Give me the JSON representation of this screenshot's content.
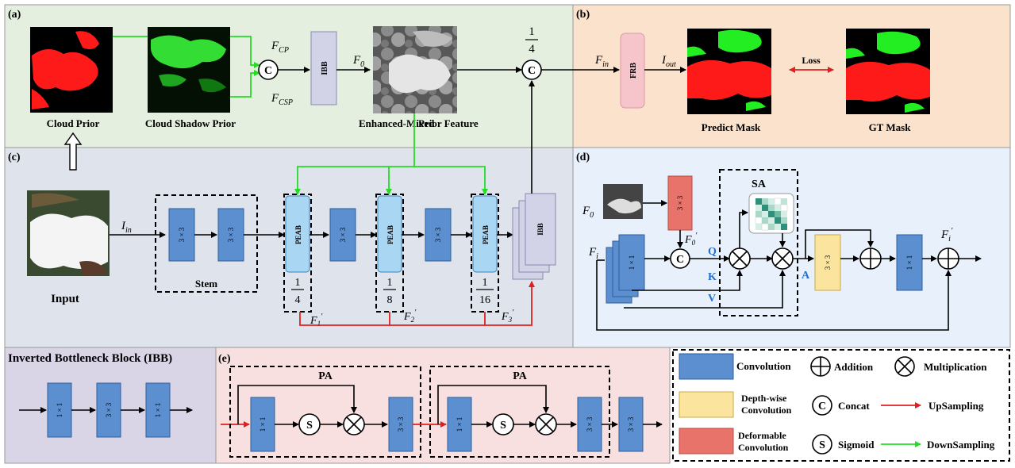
{
  "panels": {
    "a": "(a)",
    "b": "(b)",
    "c": "(c)",
    "d": "(d)",
    "e": "(e)",
    "ibb_title": "Inverted Bottleneck Block (IBB)"
  },
  "panel_a": {
    "cloud_prior": "Cloud Prior",
    "cloud_shadow_prior": "Cloud Shadow Prior",
    "enhanced_mixed": "Enhanced-Mixed",
    "prior_feature": "Prior Feature",
    "f_cp": "F",
    "f_cp_sub": "CP",
    "f_csp": "F",
    "f_csp_sub": "CSP",
    "f0": "F",
    "f0_sub": "0",
    "ibb": "IBB",
    "concat": "C",
    "quarter_num": "1",
    "quarter_den": "4"
  },
  "panel_b": {
    "fin": "F",
    "fin_sub": "in",
    "frb": "FRB",
    "iout": "I",
    "iout_sub": "out",
    "loss": "Loss",
    "predict_mask": "Predict Mask",
    "gt_mask": "GT Mask"
  },
  "panel_c": {
    "input": "Input",
    "iin": "I",
    "iin_sub": "in",
    "conv33": "3 × 3",
    "stem": "Stem",
    "peab": "PEAB",
    "ibb": "IBB",
    "frac1_num": "1",
    "frac1_den": "4",
    "frac2_num": "1",
    "frac2_den": "8",
    "frac3_num": "1",
    "frac3_den": "16",
    "f1": "F",
    "f1_sub": "1",
    "f2": "F",
    "f2_sub": "2",
    "f3": "F",
    "f3_sub": "3",
    "prime": "′"
  },
  "panel_d": {
    "f0": "F",
    "f0_sub": "0",
    "f0p": "F",
    "f0p_sub": "0",
    "fi": "F",
    "fi_sub": "i",
    "fip": "F",
    "fip_sub": "i",
    "sa": "SA",
    "conv11": "1 × 1",
    "conv33": "3 × 3",
    "q": "Q",
    "k": "K",
    "v": "V",
    "a": "A",
    "concat": "C"
  },
  "panel_ibb": {
    "c1": "1 × 1",
    "c2": "3 × 3",
    "c3": "1 × 1"
  },
  "panel_e": {
    "pa": "PA",
    "conv11": "1 × 1",
    "conv33": "3 × 3",
    "sigmoid": "S"
  },
  "legend": {
    "convolution": "Convolution",
    "depthwise_1": "Depth-wise",
    "depthwise_2": "Convolution",
    "deformable_1": "Deformable",
    "deformable_2": "Convolution",
    "addition": "Addition",
    "multiplication": "Multiplication",
    "concat": "Concat",
    "concat_sym": "C",
    "sigmoid": "Sigmoid",
    "sigmoid_sym": "S",
    "upsampling": "UpSampling",
    "downsampling": "DownSampling"
  },
  "colors": {
    "panel_a_bg": "#e4efdf",
    "panel_b_bg": "#fbe2cc",
    "panel_c_bg": "#dfe3ec",
    "panel_d_bg": "#e7f0fb",
    "panel_ibb_bg": "#d9d4e6",
    "panel_e_bg": "#f8e0e0",
    "conv": "#5b8fd0",
    "peab": "#a9d6f2",
    "depthwise": "#fbe59e",
    "deformable": "#e8736a",
    "frb": "#f6c5cc",
    "up": "#e02020",
    "down": "#22dd22"
  }
}
